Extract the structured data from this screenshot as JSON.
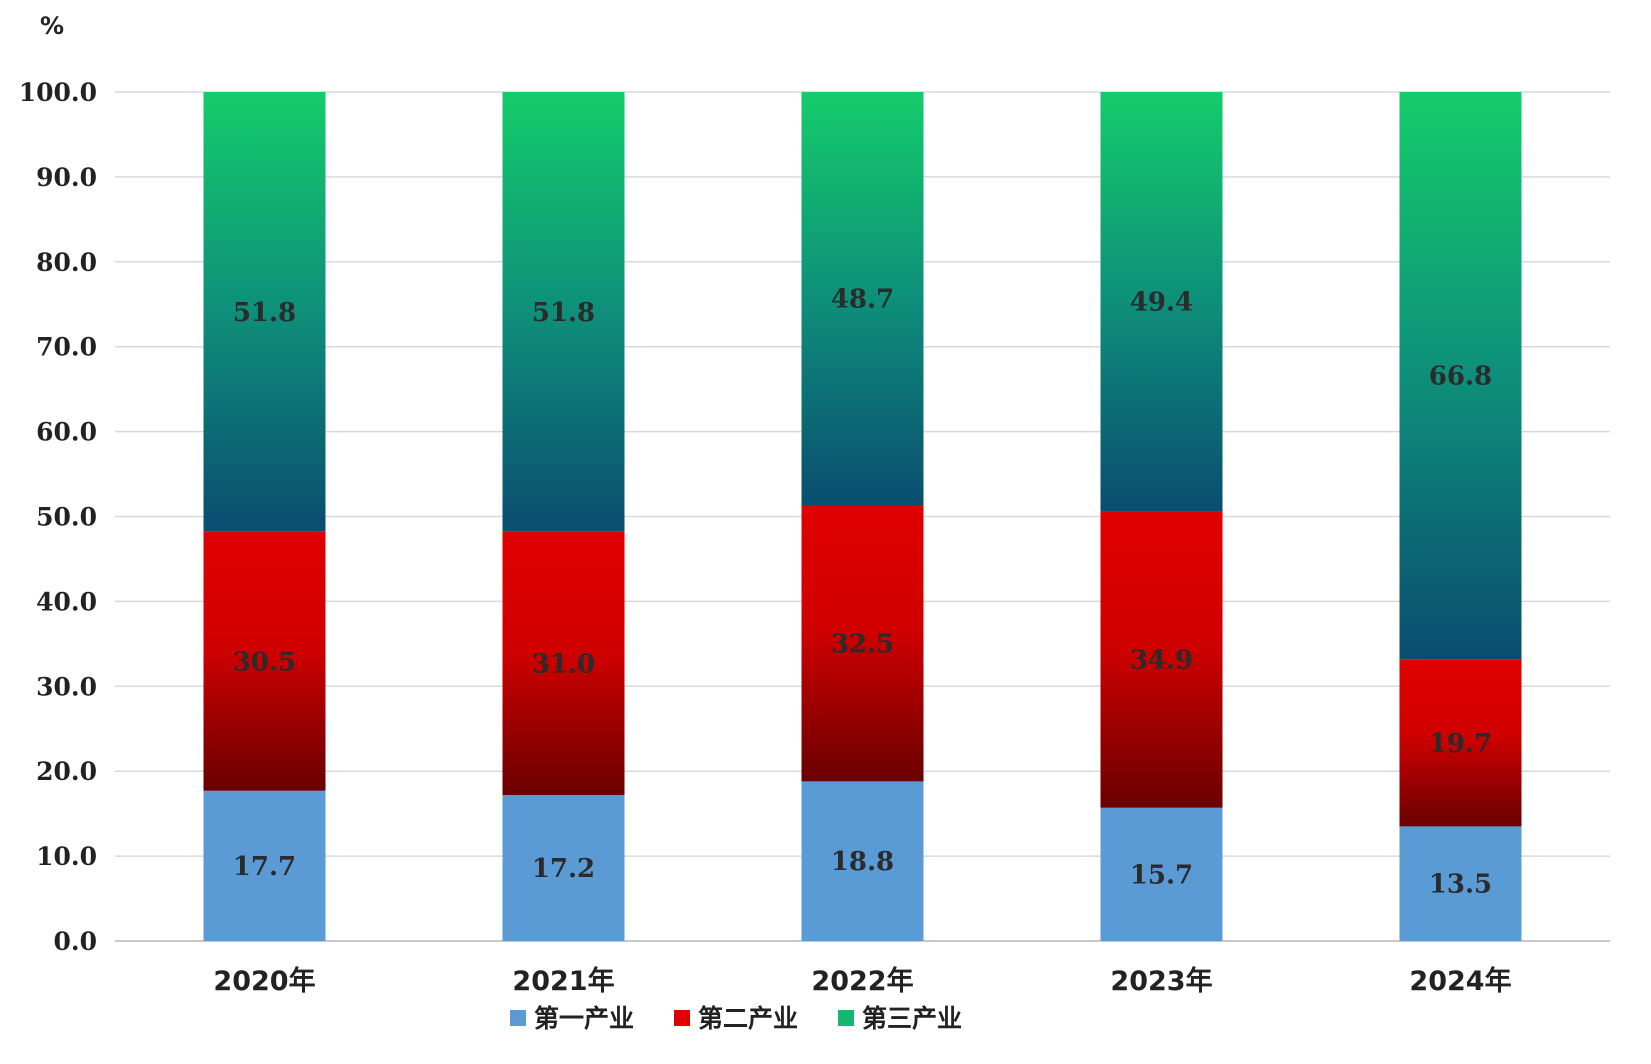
{
  "chart_data": {
    "type": "bar",
    "stacked": true,
    "unit": "%",
    "categories": [
      "2020年",
      "2021年",
      "2022年",
      "2023年",
      "2024年"
    ],
    "series": [
      {
        "name": "第一产业",
        "values": [
          17.7,
          17.2,
          18.8,
          15.7,
          13.5
        ],
        "value_labels": [
          "17.7",
          "17.2",
          "18.8",
          "15.7",
          "13.5"
        ],
        "color": "#5b9bd5"
      },
      {
        "name": "第二产业",
        "values": [
          30.5,
          31.0,
          32.5,
          34.9,
          19.7
        ],
        "value_labels": [
          "30.5",
          "31.0",
          "32.5",
          "34.9",
          "19.7"
        ],
        "color_top": "#e00000",
        "color_bottom": "#6a0000"
      },
      {
        "name": "第三产业",
        "values": [
          51.8,
          51.8,
          48.7,
          49.4,
          66.8
        ],
        "value_labels": [
          "51.8",
          "51.8",
          "48.7",
          "49.4",
          "66.8"
        ],
        "color_top": "#14cc6a",
        "color_bottom": "#0a4d70"
      }
    ],
    "ylim": [
      0,
      100
    ],
    "yticks": [
      0,
      10,
      20,
      30,
      40,
      50,
      60,
      70,
      80,
      90,
      100
    ],
    "ytick_labels": [
      "0.0",
      "10.0",
      "20.0",
      "30.0",
      "40.0",
      "50.0",
      "60.0",
      "70.0",
      "80.0",
      "90.0",
      "100.0"
    ],
    "grid": true,
    "legend_position": "bottom"
  }
}
